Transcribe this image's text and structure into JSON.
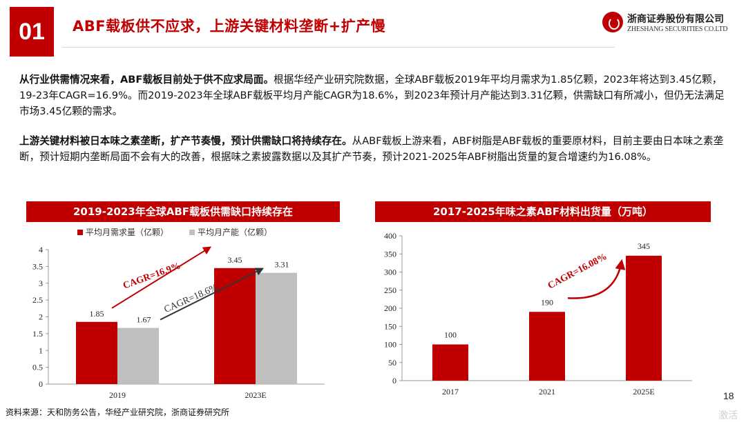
{
  "header": {
    "section_number": "01",
    "title": "ABF载板供不应求，上游关键材料垄断+扩产慢",
    "logo_cn": "浙商证券股份有限公司",
    "logo_en": "ZHESHANG SECURITIES CO.LTD"
  },
  "paragraphs": [
    {
      "lead": "从行业供需情况来看，ABF载板目前处于供不应求局面。",
      "body": "根据华经产业研究院数据，全球ABF载板2019年平均月需求为1.85亿颗，2023年将达到3.45亿颗，19-23年CAGR=16.9%。而2019-2023年全球ABF载板平均月产能CAGR为18.6%，到2023年预计月产能达到3.31亿颗，供需缺口有所减小，但仍无法满足市场3.45亿颗的需求。"
    },
    {
      "lead": "上游关键材料被日本味之素垄断，扩产节奏慢，预计供需缺口将持续存在。",
      "body": "从ABF载板上游来看，ABF树脂是ABF载板的重要原材料，目前主要由日本味之素垄断，预计短期内垄断局面不会有大的改善，根据味之素披露数据以及其扩产节奏，预计2021-2025年ABF树脂出货量的复合增速约为16.08%。"
    }
  ],
  "chart_data": [
    {
      "type": "bar",
      "title": "2019-2023年全球ABF载板供需缺口持续存在",
      "categories": [
        "2019",
        "2023E"
      ],
      "series": [
        {
          "name": "平均月需求量（亿颗）",
          "values": [
            1.85,
            3.45
          ],
          "labels": [
            "1.85",
            "3.45"
          ],
          "color": "#c00000"
        },
        {
          "name": "平均月产能（亿颗）",
          "values": [
            1.67,
            3.31
          ],
          "labels": [
            "1.67",
            "3.31"
          ],
          "color": "#bfbfbf"
        }
      ],
      "ylim": [
        0,
        4
      ],
      "yticks": [
        "0",
        "0.5",
        "1",
        "1.5",
        "2",
        "2.5",
        "3",
        "3.5",
        "4"
      ],
      "legend": "top-left",
      "annotations": [
        "CAGR=16.9%",
        "CAGR=18.6%"
      ]
    },
    {
      "type": "bar",
      "title": "2017-2025年味之素ABF材料出货量（万吨）",
      "categories": [
        "2017",
        "2021",
        "2025E"
      ],
      "series": [
        {
          "values": [
            100,
            190,
            345
          ],
          "labels": [
            "100",
            "190",
            "345"
          ],
          "color": "#c00000"
        }
      ],
      "ylim": [
        0,
        400
      ],
      "yticks": [
        "0",
        "50",
        "100",
        "150",
        "200",
        "250",
        "300",
        "350",
        "400"
      ],
      "annotations": [
        "CAGR=16.08%"
      ]
    }
  ],
  "footer": {
    "source": "资料来源：天和防务公告，华经产业研究院，浙商证券研究所",
    "page_number": "18",
    "watermark": "激活"
  }
}
